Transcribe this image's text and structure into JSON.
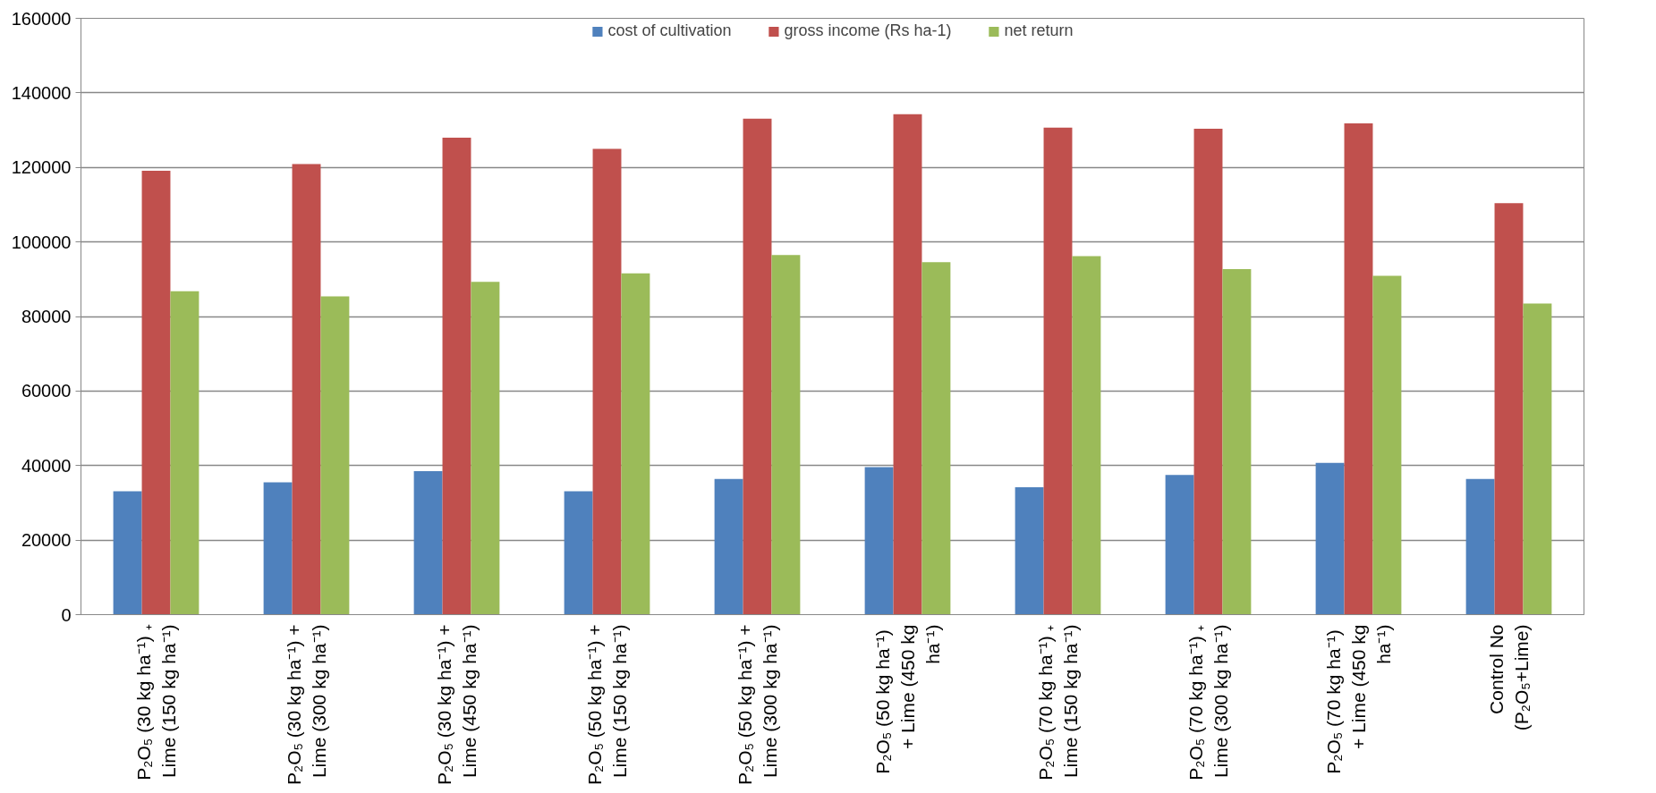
{
  "chart_data": {
    "type": "bar",
    "categories": [
      "P₂O₅ (30 kg ha⁻¹) ₊ Lime (150 kg ha⁻¹)",
      "P₂O₅ (30 kg ha⁻¹) + Lime (300 kg ha⁻¹)",
      "P₂O₅ (30 kg ha⁻¹) + Lime (450 kg ha⁻¹)",
      "P₂O₅ (50 kg ha⁻¹) + Lime (150 kg ha⁻¹)",
      "P₂O₅ (50 kg ha⁻¹) + Lime (300 kg ha⁻¹)",
      "P₂O₅ (50  kg ha⁻¹) + Lime (450 kg ha⁻¹)",
      "P₂O₅ (70 kg ha⁻¹) ₊ Lime (150 kg ha⁻¹)",
      "P₂O₅ (70 kg ha⁻¹) ₊ Lime (300 kg ha⁻¹)",
      "P₂O₅ (70  kg ha⁻¹) + Lime (450 kg ha⁻¹)",
      "Control No (P₂O₅+Lime)"
    ],
    "series": [
      {
        "name": "cost of cultivation",
        "color": "#4f81bd",
        "values": [
          33100,
          35500,
          38500,
          33100,
          36400,
          39600,
          34200,
          37500,
          40700,
          36400
        ]
      },
      {
        "name": "gross income (Rs ha-1)",
        "color": "#c0504d",
        "values": [
          119100,
          120900,
          128000,
          125000,
          133100,
          134300,
          130700,
          130400,
          131800,
          110400
        ]
      },
      {
        "name": "net return",
        "color": "#9bbb59",
        "values": [
          86800,
          85400,
          89300,
          91600,
          96500,
          94600,
          96200,
          92700,
          90900,
          83500
        ]
      }
    ],
    "ylim": [
      0,
      160000
    ],
    "yticks": [
      0,
      20000,
      40000,
      60000,
      80000,
      100000,
      120000,
      140000,
      160000
    ],
    "grid": "y",
    "legend": "top"
  }
}
